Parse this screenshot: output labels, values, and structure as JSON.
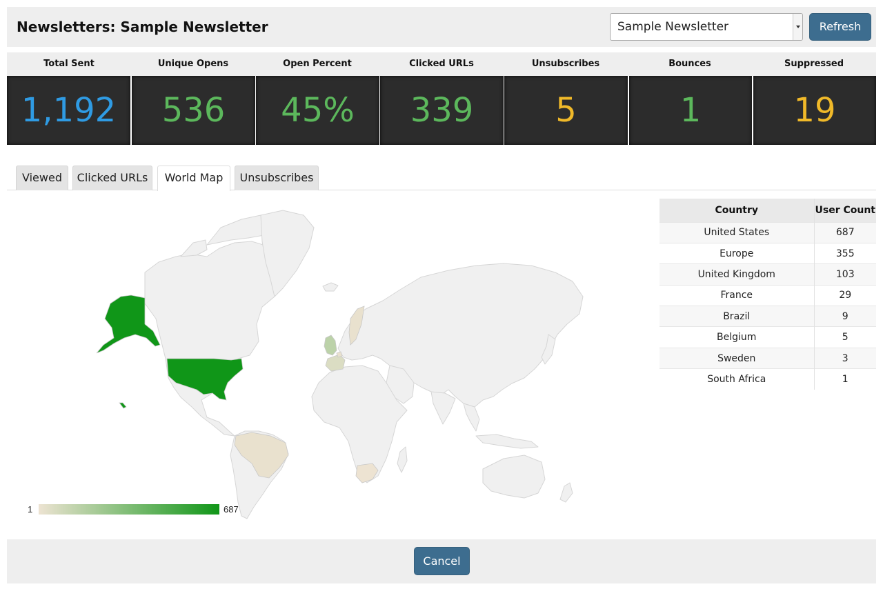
{
  "header": {
    "title": "Newsletters: Sample Newsletter",
    "select_value": "Sample Newsletter",
    "refresh_label": "Refresh"
  },
  "stats": [
    {
      "label": "Total Sent",
      "value": "1,192",
      "color": "#2f9be3"
    },
    {
      "label": "Unique Opens",
      "value": "536",
      "color": "#5cb85c"
    },
    {
      "label": "Open Percent",
      "value": "45%",
      "color": "#5cb85c"
    },
    {
      "label": "Clicked URLs",
      "value": "339",
      "color": "#5cb85c"
    },
    {
      "label": "Unsubscribes",
      "value": "5",
      "color": "#f0b929"
    },
    {
      "label": "Bounces",
      "value": "1",
      "color": "#5cb85c"
    },
    {
      "label": "Suppressed",
      "value": "19",
      "color": "#f0b929"
    }
  ],
  "tabs": [
    {
      "label": "Viewed",
      "active": false
    },
    {
      "label": "Clicked URLs",
      "active": false
    },
    {
      "label": "World Map",
      "active": true
    },
    {
      "label": "Unsubscribes",
      "active": false
    }
  ],
  "map": {
    "legend_min": "1",
    "legend_max": "687",
    "color_low": "#ede3d2",
    "color_high": "#109618",
    "base_land_color": "#f0f0f0"
  },
  "country_table": {
    "headers": [
      "Country",
      "User Count"
    ],
    "rows": [
      {
        "country": "United States",
        "count": "687"
      },
      {
        "country": "Europe",
        "count": "355"
      },
      {
        "country": "United Kingdom",
        "count": "103"
      },
      {
        "country": "France",
        "count": "29"
      },
      {
        "country": "Brazil",
        "count": "9"
      },
      {
        "country": "Belgium",
        "count": "5"
      },
      {
        "country": "Sweden",
        "count": "3"
      },
      {
        "country": "South Africa",
        "count": "1"
      }
    ]
  },
  "footer": {
    "cancel_label": "Cancel"
  }
}
